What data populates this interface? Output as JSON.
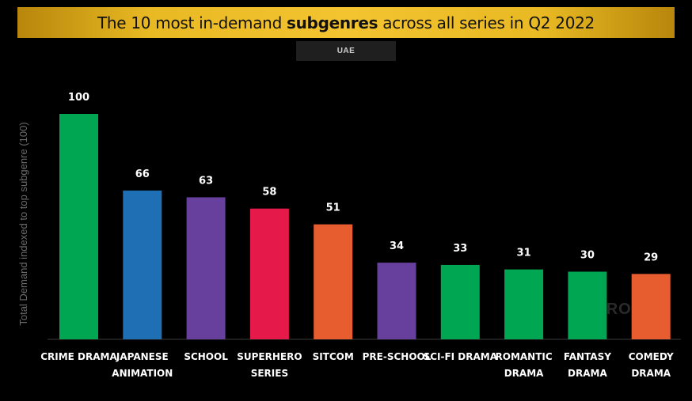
{
  "title": {
    "prefix": "The 10 most in-demand ",
    "bold": "subgenres",
    "suffix": " across all series in Q2 2022"
  },
  "region": "UAE",
  "watermark": "PARROT",
  "chart_data": {
    "type": "bar",
    "title": "The 10 most in-demand subgenres across all series in Q2 2022",
    "subtitle": "UAE",
    "ylabel": "Total Demand indexed to top subgenre (100)",
    "xlabel": "",
    "ylim": [
      0,
      100
    ],
    "grid": false,
    "categories": [
      [
        "CRIME DRAMA"
      ],
      [
        "JAPANESE",
        "ANIMATION"
      ],
      [
        "SCHOOL"
      ],
      [
        "SUPERHERO",
        "SERIES"
      ],
      [
        "SITCOM"
      ],
      [
        "PRE-SCHOOL"
      ],
      [
        "SCI-FI DRAMA"
      ],
      [
        "ROMANTIC",
        "DRAMA"
      ],
      [
        "FANTASY",
        "DRAMA"
      ],
      [
        "COMEDY",
        "DRAMA"
      ]
    ],
    "values": [
      100,
      66,
      63,
      58,
      51,
      34,
      33,
      31,
      30,
      29
    ],
    "colors": [
      "#00a651",
      "#1f6fb5",
      "#66409c",
      "#e5194a",
      "#e85d30",
      "#66409c",
      "#00a651",
      "#00a651",
      "#00a651",
      "#e85d30"
    ]
  }
}
